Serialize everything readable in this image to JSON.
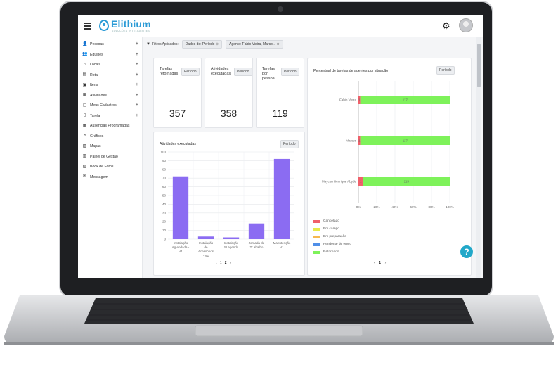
{
  "app": {
    "logo": "Elithium",
    "logo_sub": "SOLUÇÕES INTELIGENTES"
  },
  "sidebar": {
    "items": [
      {
        "label": "Pessoas",
        "icon": "person-icon",
        "expandable": true
      },
      {
        "label": "Equipes",
        "icon": "team-icon",
        "expandable": true
      },
      {
        "label": "Locais",
        "icon": "home-icon",
        "expandable": true
      },
      {
        "label": "Rota",
        "icon": "route-icon",
        "expandable": true
      },
      {
        "label": "Itens",
        "icon": "box-icon",
        "expandable": true
      },
      {
        "label": "Atividades",
        "icon": "clipboard-icon",
        "expandable": true
      },
      {
        "label": "Meus Cadastros",
        "icon": "folder-icon",
        "expandable": true
      },
      {
        "label": "Tarefa",
        "icon": "task-icon",
        "expandable": true
      },
      {
        "label": "Ausências Programadas",
        "icon": "calendar-icon",
        "expandable": false
      },
      {
        "label": "Gráficos",
        "icon": "pie-chart-icon",
        "expandable": false
      },
      {
        "label": "Mapas",
        "icon": "map-icon",
        "expandable": false
      },
      {
        "label": "Painel de Gestão",
        "icon": "dashboard-icon",
        "expandable": false
      },
      {
        "label": "Book de Fotos",
        "icon": "photo-book-icon",
        "expandable": false
      },
      {
        "label": "Mensagem",
        "icon": "envelope-icon",
        "expandable": false
      }
    ]
  },
  "filters": {
    "label": "Filtros Aplicados:",
    "chips": [
      "Dados do: Período",
      "Agente: Fabio Vieira, Marco..."
    ]
  },
  "kpis": [
    {
      "label": "Tarefas retornadas",
      "button": "Período",
      "value": "357"
    },
    {
      "label": "Atividades executadas",
      "button": "Período",
      "value": "358"
    },
    {
      "label": "Tarefas por pessoa",
      "button": "Período",
      "value": "119"
    }
  ],
  "bar_card": {
    "title": "Atividades executadas",
    "button": "Período",
    "pager": {
      "prev": "‹",
      "pages": [
        "1",
        "2"
      ],
      "current": "2",
      "next": "›"
    }
  },
  "stacked_card": {
    "title": "Percentual de tarefas de agentes por situação",
    "button": "Período",
    "pager": {
      "prev": "‹",
      "pages": [
        "1"
      ],
      "current": "1",
      "next": "›"
    }
  },
  "colors": {
    "bar": "#8b6cf2",
    "cancelado": "#f0606a",
    "em_campo": "#e8e94a",
    "em_preparacao": "#f6b94f",
    "pendente": "#4f8fe8",
    "retornado": "#7ef25a",
    "accent": "#2c9bd6"
  },
  "chart_data": [
    {
      "type": "bar",
      "title": "Atividades executadas",
      "categories": [
        "Instalação Ag endada - V1",
        "Instalação de Acessórios - V1",
        "Instalação SI agenda",
        "Jornada de Tr abalho",
        "Manutenção V1"
      ],
      "values": [
        72,
        3,
        2,
        18,
        92
      ],
      "ylim": [
        0,
        100
      ],
      "yticks": [
        0,
        10,
        20,
        30,
        40,
        50,
        60,
        70,
        80,
        90,
        100
      ],
      "grid": true
    },
    {
      "type": "bar",
      "orientation": "horizontal",
      "stacked": true,
      "percent": true,
      "title": "Percentual de tarefas de agentes por situação",
      "categories": [
        "Fabio Vieira",
        "Marcos",
        "Maycon Henrique Abyde"
      ],
      "xticks": [
        "0%",
        "20%",
        "40%",
        "60%",
        "80%",
        "100%"
      ],
      "series": [
        {
          "name": "Cancelado",
          "values": [
            2,
            2,
            5
          ],
          "labels": [
            "1",
            "1",
            "1"
          ]
        },
        {
          "name": "Em campo",
          "values": [
            0,
            0,
            0
          ]
        },
        {
          "name": "Em preparação",
          "values": [
            0,
            0,
            0
          ]
        },
        {
          "name": "Pendente de envio",
          "values": [
            0,
            0,
            0
          ]
        },
        {
          "name": "Retornado",
          "values": [
            98,
            98,
            95
          ],
          "labels": [
            "117",
            "117",
            "115"
          ]
        }
      ],
      "legend_position": "bottom-left"
    }
  ]
}
